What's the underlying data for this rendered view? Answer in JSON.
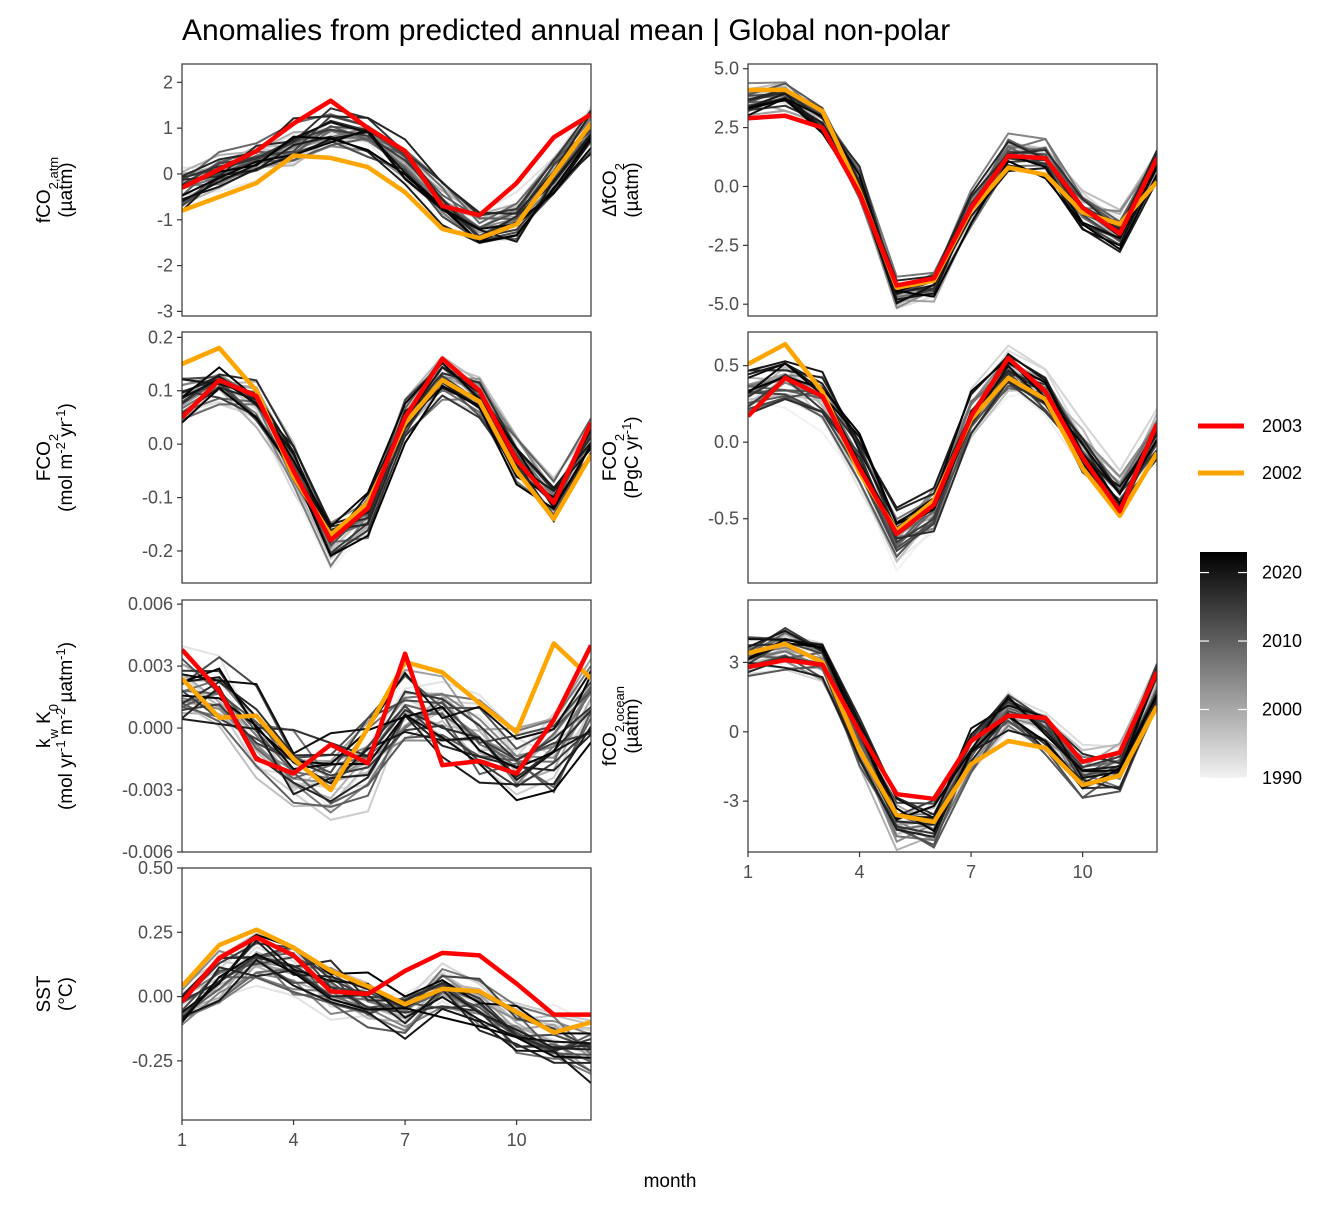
{
  "title": "Anomalies from predicted annual mean | Global non-polar",
  "xlabel": "month",
  "legend": {
    "highlight": [
      {
        "label": "2003",
        "color": "#ff0000"
      },
      {
        "label": "2002",
        "color": "#ffa500"
      }
    ],
    "colorbar": {
      "ticks": [
        "2020",
        "2010",
        "2000",
        "1990"
      ],
      "range": [
        1990,
        2023
      ],
      "low_color": "#f2f2f2",
      "high_color": "#000000"
    }
  },
  "chart_data": [
    {
      "type": "line",
      "name": "fco2atm",
      "ylabel": [
        "fCO2,atm",
        "(µatm)"
      ],
      "xlim": [
        1,
        12
      ],
      "ylim": [
        -3.1,
        2.4
      ],
      "xticks": [
        "1",
        "4",
        "7",
        "10"
      ],
      "yticks": [
        "2",
        "1",
        "0",
        "-1",
        "-2",
        "-3"
      ],
      "ytick_values": [
        2,
        1,
        0,
        -1,
        -2,
        -3
      ],
      "base": [
        -0.3,
        0.0,
        0.3,
        0.6,
        0.9,
        0.8,
        0.2,
        -0.6,
        -1.2,
        -1.0,
        0.0,
        1.0
      ],
      "spread": 0.5,
      "series": [
        {
          "name": "2003",
          "values": [
            -0.3,
            0.1,
            0.5,
            1.1,
            1.6,
            1.0,
            0.5,
            -0.7,
            -0.9,
            -0.2,
            0.8,
            1.3
          ]
        },
        {
          "name": "2002",
          "values": [
            -0.8,
            -0.5,
            -0.2,
            0.4,
            0.35,
            0.15,
            -0.4,
            -1.2,
            -1.4,
            -1.1,
            0.0,
            1.1
          ]
        }
      ]
    },
    {
      "type": "line",
      "name": "dfco2",
      "ylabel": [
        "ΔfCO2",
        "(µatm)"
      ],
      "xlim": [
        1,
        12
      ],
      "ylim": [
        -5.5,
        5.2
      ],
      "xticks": [
        "1",
        "4",
        "7",
        "10"
      ],
      "yticks": [
        "5.0",
        "2.5",
        "0.0",
        "-2.5",
        "-5.0"
      ],
      "ytick_values": [
        5.0,
        2.5,
        0.0,
        -2.5,
        -5.0
      ],
      "base": [
        3.6,
        3.7,
        2.7,
        0.0,
        -4.6,
        -4.3,
        -1.0,
        1.4,
        1.2,
        -1.0,
        -1.9,
        1.0
      ],
      "spread": 0.8,
      "series": [
        {
          "name": "2003",
          "values": [
            2.9,
            3.0,
            2.5,
            -0.3,
            -4.2,
            -3.9,
            -0.9,
            1.3,
            1.2,
            -0.9,
            -2.0,
            1.2
          ]
        },
        {
          "name": "2002",
          "values": [
            4.1,
            4.1,
            3.2,
            -0.2,
            -4.3,
            -4.0,
            -1.0,
            0.8,
            0.5,
            -1.1,
            -1.6,
            0.2
          ]
        }
      ]
    },
    {
      "type": "line",
      "name": "fco2-flux-area",
      "ylabel": [
        "FCO2",
        "(mol m-2 yr-1)"
      ],
      "xlim": [
        1,
        12
      ],
      "ylim": [
        -0.26,
        0.21
      ],
      "xticks": [
        "1",
        "4",
        "7",
        "10"
      ],
      "yticks": [
        "0.2",
        "0.1",
        "0.0",
        "-0.1",
        "-0.2"
      ],
      "ytick_values": [
        0.2,
        0.1,
        0.0,
        -0.1,
        -0.2
      ],
      "base": [
        0.09,
        0.11,
        0.08,
        -0.04,
        -0.18,
        -0.13,
        0.05,
        0.13,
        0.09,
        -0.02,
        -0.1,
        0.02
      ],
      "spread": 0.05,
      "series": [
        {
          "name": "2003",
          "values": [
            0.05,
            0.12,
            0.09,
            -0.05,
            -0.18,
            -0.12,
            0.05,
            0.16,
            0.1,
            -0.03,
            -0.11,
            0.04
          ]
        },
        {
          "name": "2002",
          "values": [
            0.15,
            0.18,
            0.1,
            -0.06,
            -0.17,
            -0.11,
            0.04,
            0.12,
            0.08,
            -0.05,
            -0.14,
            -0.02
          ]
        }
      ]
    },
    {
      "type": "line",
      "name": "fco2-flux-total",
      "ylabel": [
        "FCO2",
        "(PgC yr-1)"
      ],
      "xlim": [
        1,
        12
      ],
      "ylim": [
        -0.92,
        0.72
      ],
      "xticks": [
        "1",
        "4",
        "7",
        "10"
      ],
      "yticks": [
        "0.5",
        "0.0",
        "-0.5"
      ],
      "ytick_values": [
        0.5,
        0.0,
        -0.5
      ],
      "base": [
        0.32,
        0.4,
        0.28,
        -0.14,
        -0.62,
        -0.45,
        0.18,
        0.45,
        0.32,
        -0.07,
        -0.35,
        0.07
      ],
      "spread": 0.17,
      "series": [
        {
          "name": "2003",
          "values": [
            0.17,
            0.42,
            0.3,
            -0.17,
            -0.6,
            -0.41,
            0.17,
            0.55,
            0.33,
            -0.1,
            -0.45,
            0.12
          ]
        },
        {
          "name": "2002",
          "values": [
            0.51,
            0.64,
            0.33,
            -0.2,
            -0.58,
            -0.38,
            0.15,
            0.42,
            0.28,
            -0.17,
            -0.48,
            -0.07
          ]
        }
      ]
    },
    {
      "type": "line",
      "name": "kw-k0",
      "ylabel": [
        "kw K0",
        "(mol yr-1 m-2 µatm-1)"
      ],
      "xlim": [
        1,
        12
      ],
      "ylim": [
        -0.006,
        0.0062
      ],
      "xticks": [
        "1",
        "4",
        "7",
        "10"
      ],
      "yticks": [
        "0.006",
        "0.003",
        "0.000",
        "-0.003",
        "-0.006"
      ],
      "ytick_values": [
        0.006,
        0.003,
        0.0,
        -0.003,
        -0.006
      ],
      "base": [
        0.002,
        0.0015,
        -0.0003,
        -0.0018,
        -0.0025,
        -0.0015,
        0.001,
        0.0008,
        -0.0005,
        -0.0015,
        -0.001,
        0.0015
      ],
      "spread": 0.0022,
      "series": [
        {
          "name": "2003",
          "values": [
            0.0038,
            0.0018,
            -0.0015,
            -0.0022,
            -0.0008,
            -0.0017,
            0.0036,
            -0.0018,
            -0.0016,
            -0.0022,
            0.0004,
            0.004
          ]
        },
        {
          "name": "2002",
          "values": [
            0.0024,
            0.0005,
            0.0006,
            -0.0015,
            -0.003,
            0.0,
            0.0032,
            0.0027,
            0.0012,
            -0.0002,
            0.0041,
            0.0024
          ]
        }
      ]
    },
    {
      "type": "line",
      "name": "fco2ocean",
      "ylabel": [
        "fCO2,ocean",
        "(µatm)"
      ],
      "xlim": [
        1,
        12
      ],
      "ylim": [
        -5.2,
        5.7
      ],
      "xticks": [
        "1",
        "4",
        "7",
        "10"
      ],
      "yticks": [
        "3",
        "0",
        "-3"
      ],
      "ytick_values": [
        3,
        0,
        -3
      ],
      "base": [
        3.2,
        3.5,
        3.0,
        -0.5,
        -4.0,
        -4.1,
        -0.8,
        0.9,
        0.1,
        -1.8,
        -1.5,
        2.0
      ],
      "spread": 1.0,
      "series": [
        {
          "name": "2003",
          "values": [
            2.8,
            3.1,
            2.9,
            0.0,
            -2.7,
            -2.9,
            -0.4,
            0.7,
            0.6,
            -1.3,
            -0.9,
            2.6
          ]
        },
        {
          "name": "2002",
          "values": [
            3.4,
            3.8,
            3.0,
            -0.8,
            -3.6,
            -3.9,
            -1.4,
            -0.4,
            -0.7,
            -2.3,
            -1.9,
            1.1
          ]
        }
      ]
    },
    {
      "type": "line",
      "name": "sst",
      "ylabel": [
        "SST",
        "(°C)"
      ],
      "xlim": [
        1,
        12
      ],
      "ylim": [
        -0.48,
        0.5
      ],
      "xticks": [
        "1",
        "4",
        "7",
        "10"
      ],
      "yticks": [
        "0.50",
        "0.25",
        "0.00",
        "-0.25"
      ],
      "ytick_values": [
        0.5,
        0.25,
        0.0,
        -0.25
      ],
      "base": [
        -0.05,
        0.08,
        0.15,
        0.1,
        0.02,
        -0.03,
        -0.05,
        0.02,
        -0.02,
        -0.12,
        -0.17,
        -0.2
      ],
      "spread": 0.12,
      "series": [
        {
          "name": "2003",
          "values": [
            -0.02,
            0.15,
            0.23,
            0.16,
            0.02,
            0.01,
            0.1,
            0.17,
            0.16,
            0.05,
            -0.07,
            -0.07
          ]
        },
        {
          "name": "2002",
          "values": [
            0.04,
            0.2,
            0.26,
            0.19,
            0.1,
            0.04,
            -0.03,
            0.03,
            0.02,
            -0.06,
            -0.14,
            -0.1
          ]
        }
      ]
    }
  ]
}
